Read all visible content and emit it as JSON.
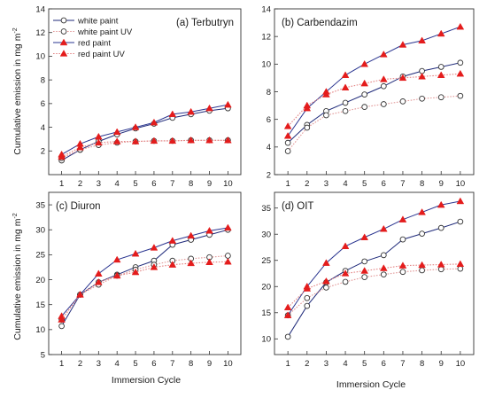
{
  "figure": {
    "ylabel_top": "Cumulative emission in mg m",
    "ylabel_bottom": "Cumulative emission in mg m",
    "ylabel_unit_sup": "-2",
    "xlabel_left": "Immersion Cycle",
    "xlabel_right": "Immersion Cycle"
  },
  "styles": {
    "white paint": {
      "color": "#1f2a7a",
      "marker": "circle-open",
      "line": "solid"
    },
    "white paint UV": {
      "color": "#e39a9a",
      "marker": "circle-open",
      "line": "dotted"
    },
    "red paint": {
      "color": "#2a3590",
      "marker": "triangle-filled",
      "line": "solid"
    },
    "red paint UV": {
      "color": "#e48585",
      "marker": "triangle-filled",
      "line": "dotted"
    },
    "triangle_fill": "#e41c1c",
    "circle_edge": "#333333"
  },
  "chart_data": [
    {
      "type": "line",
      "title": "(a) Terbutryn",
      "x": [
        1,
        2,
        3,
        4,
        5,
        6,
        7,
        8,
        9,
        10
      ],
      "ylim": [
        0,
        14
      ],
      "yticks": [
        2,
        4,
        6,
        8,
        10,
        12,
        14
      ],
      "xticks": [
        1,
        2,
        3,
        4,
        5,
        6,
        7,
        8,
        9,
        10
      ],
      "legend": "top-left",
      "series": [
        {
          "name": "white paint",
          "values": [
            1.2,
            2.1,
            2.8,
            3.4,
            3.9,
            4.3,
            4.8,
            5.1,
            5.4,
            5.6
          ]
        },
        {
          "name": "white paint UV",
          "values": [
            1.4,
            2.1,
            2.5,
            2.7,
            2.8,
            2.85,
            2.85,
            2.9,
            2.9,
            2.9
          ]
        },
        {
          "name": "red paint",
          "values": [
            1.7,
            2.6,
            3.2,
            3.6,
            4.0,
            4.4,
            5.1,
            5.3,
            5.6,
            5.9
          ]
        },
        {
          "name": "red paint UV",
          "values": [
            1.5,
            2.3,
            2.7,
            2.8,
            2.8,
            2.85,
            2.85,
            2.9,
            2.9,
            2.9
          ]
        }
      ]
    },
    {
      "type": "line",
      "title": "(b) Carbendazim",
      "x": [
        1,
        2,
        3,
        4,
        5,
        6,
        7,
        8,
        9,
        10
      ],
      "ylim": [
        2,
        14
      ],
      "yticks": [
        2,
        4,
        6,
        8,
        10,
        12,
        14
      ],
      "xticks": [
        1,
        2,
        3,
        4,
        5,
        6,
        7,
        8,
        9,
        10
      ],
      "series": [
        {
          "name": "white paint",
          "values": [
            4.3,
            5.6,
            6.6,
            7.2,
            7.8,
            8.4,
            9.1,
            9.5,
            9.8,
            10.1
          ]
        },
        {
          "name": "white paint UV",
          "values": [
            3.7,
            5.4,
            6.3,
            6.6,
            6.9,
            7.1,
            7.3,
            7.5,
            7.6,
            7.7
          ]
        },
        {
          "name": "red paint",
          "values": [
            4.8,
            6.8,
            8.0,
            9.2,
            10.0,
            10.7,
            11.4,
            11.7,
            12.2,
            12.7
          ]
        },
        {
          "name": "red paint UV",
          "values": [
            5.5,
            7.0,
            7.8,
            8.3,
            8.6,
            8.9,
            9.0,
            9.1,
            9.2,
            9.3
          ]
        }
      ]
    },
    {
      "type": "line",
      "title": "(c) Diuron",
      "x": [
        1,
        2,
        3,
        4,
        5,
        6,
        7,
        8,
        9,
        10
      ],
      "ylim": [
        5,
        37.5
      ],
      "yticks": [
        5,
        10,
        15,
        20,
        25,
        30,
        35
      ],
      "xticks": [
        1,
        2,
        3,
        4,
        5,
        6,
        7,
        8,
        9,
        10
      ],
      "series": [
        {
          "name": "white paint",
          "values": [
            10.7,
            17.0,
            19.5,
            21.0,
            22.5,
            23.8,
            27.0,
            28.0,
            29.0,
            30.0
          ]
        },
        {
          "name": "white paint UV",
          "values": [
            12.0,
            17.0,
            19.0,
            20.8,
            22.0,
            23.0,
            23.8,
            24.2,
            24.5,
            24.8
          ]
        },
        {
          "name": "red paint",
          "values": [
            12.7,
            17.0,
            21.2,
            24.0,
            25.2,
            26.4,
            27.8,
            28.8,
            29.8,
            30.4
          ]
        },
        {
          "name": "red paint UV",
          "values": [
            12.0,
            17.0,
            19.5,
            20.8,
            21.5,
            22.5,
            23.0,
            23.3,
            23.5,
            23.6
          ]
        }
      ]
    },
    {
      "type": "line",
      "title": "(d) OIT",
      "x": [
        1,
        2,
        3,
        4,
        5,
        6,
        7,
        8,
        9,
        10
      ],
      "ylim": [
        7,
        38
      ],
      "yticks": [
        10,
        15,
        20,
        25,
        30,
        35
      ],
      "xticks": [
        1,
        2,
        3,
        4,
        5,
        6,
        7,
        8,
        9,
        10
      ],
      "series": [
        {
          "name": "white paint",
          "values": [
            10.4,
            16.3,
            20.8,
            23.0,
            24.8,
            26.0,
            29.0,
            30.1,
            31.2,
            32.4
          ]
        },
        {
          "name": "white paint UV",
          "values": [
            14.5,
            17.8,
            19.8,
            20.9,
            21.8,
            22.3,
            22.8,
            23.1,
            23.3,
            23.4
          ]
        },
        {
          "name": "red paint",
          "values": [
            14.5,
            20.0,
            24.5,
            27.7,
            29.4,
            31.0,
            32.8,
            34.2,
            35.6,
            36.3
          ]
        },
        {
          "name": "red paint UV",
          "values": [
            16.0,
            19.6,
            21.0,
            22.5,
            23.0,
            23.5,
            24.0,
            24.1,
            24.2,
            24.3
          ]
        }
      ]
    }
  ]
}
